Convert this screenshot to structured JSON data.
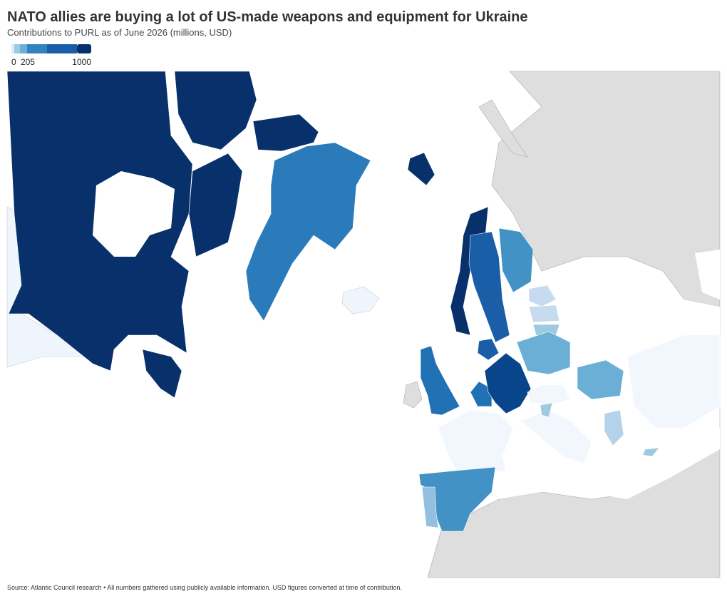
{
  "header": {
    "title": "NATO allies are buying a lot of US-made weapons and equipment for Ukraine",
    "subtitle": "Contributions to PURL as of June 2026 (millions, USD)"
  },
  "legend": {
    "range": [
      0,
      1000
    ],
    "ticks": [
      0,
      205,
      1000
    ]
  },
  "footer": {
    "source": "Source: Atlantic Council research • All numbers gathered using publicly available information. USD figures converted at time of contribution."
  }
}
